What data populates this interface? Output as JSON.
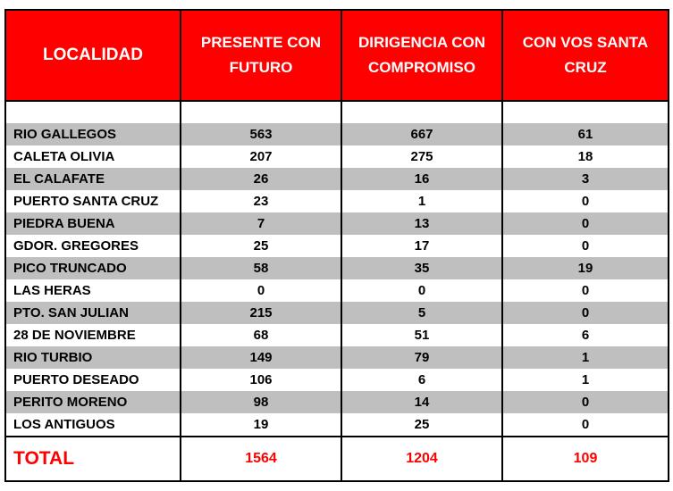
{
  "table": {
    "header": [
      "LOCALIDAD",
      "PRESENTE CON FUTURO",
      "DIRIGENCIA CON COMPROMISO",
      "CON VOS SANTA CRUZ"
    ],
    "rows": [
      [
        "RIO GALLEGOS",
        563,
        667,
        61
      ],
      [
        "CALETA OLIVIA",
        207,
        275,
        18
      ],
      [
        "EL CALAFATE",
        26,
        16,
        3
      ],
      [
        "PUERTO SANTA CRUZ",
        23,
        1,
        0
      ],
      [
        "PIEDRA BUENA",
        7,
        13,
        0
      ],
      [
        "GDOR. GREGORES",
        25,
        17,
        0
      ],
      [
        "PICO TRUNCADO",
        58,
        35,
        19
      ],
      [
        "LAS HERAS",
        0,
        0,
        0
      ],
      [
        "PTO. SAN JULIAN",
        215,
        5,
        0
      ],
      [
        "28 DE NOVIEMBRE",
        68,
        51,
        6
      ],
      [
        "RIO TURBIO",
        149,
        79,
        1
      ],
      [
        "PUERTO DESEADO",
        106,
        6,
        1
      ],
      [
        "PERITO MORENO",
        98,
        14,
        0
      ],
      [
        "LOS ANTIGUOS",
        19,
        25,
        0
      ]
    ],
    "total": [
      "TOTAL",
      1564,
      1204,
      109
    ]
  }
}
